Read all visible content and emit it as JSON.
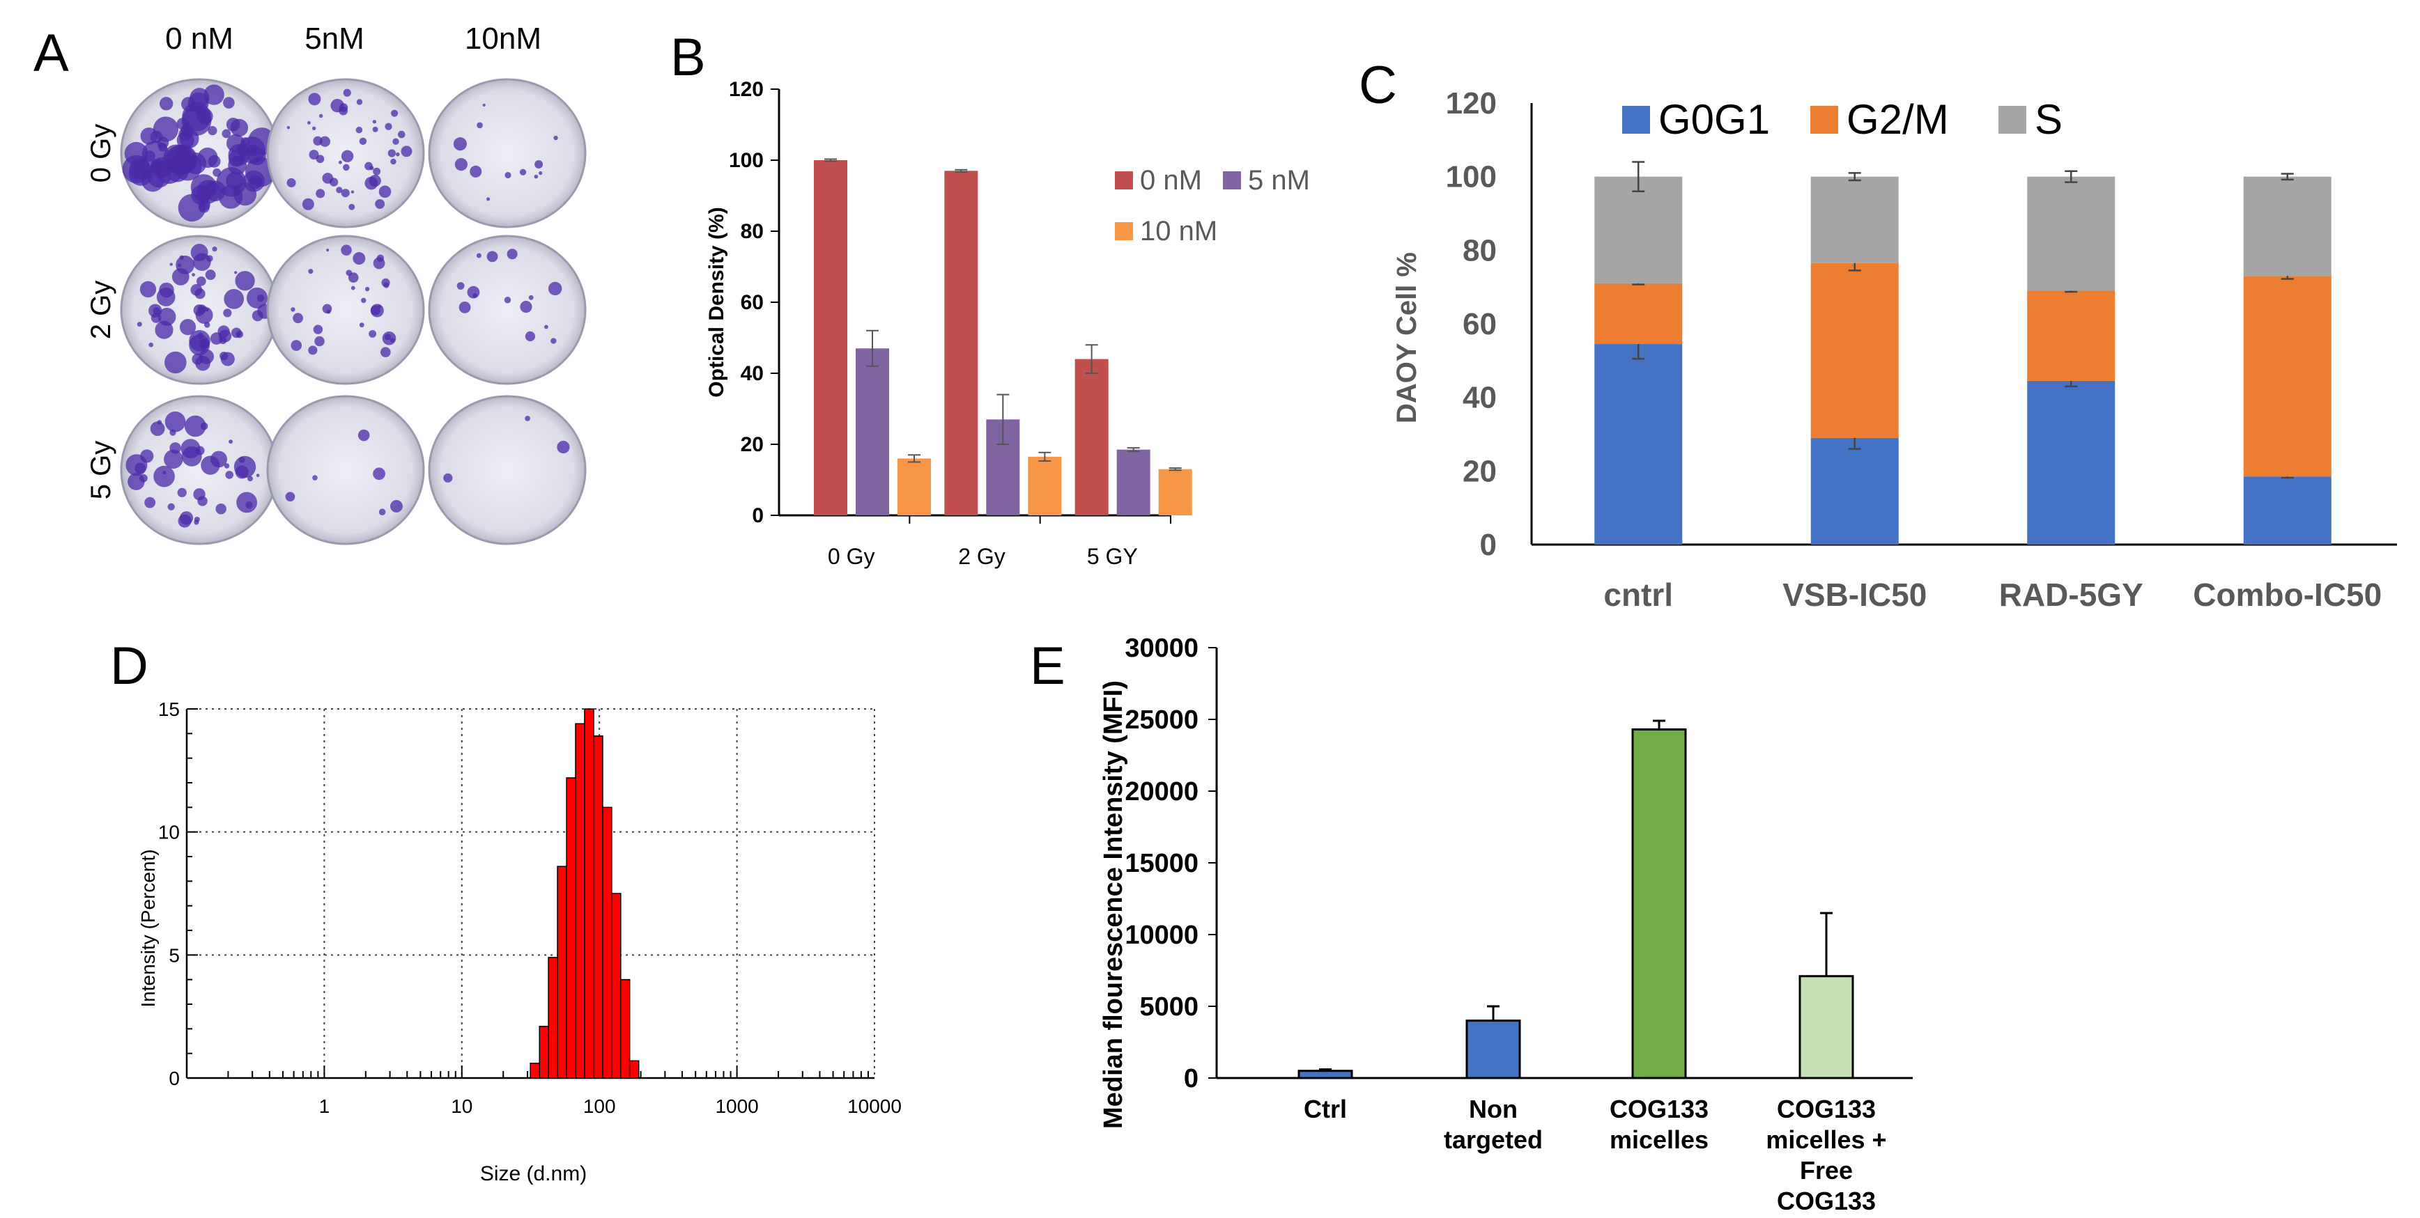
{
  "panels": {
    "A": {
      "letter": "A",
      "column_labels": [
        "0 nM",
        "5nM",
        "10nM"
      ],
      "row_labels": [
        "0 Gy",
        "2 Gy",
        "5 Gy"
      ]
    },
    "B": {
      "letter": "B"
    },
    "C": {
      "letter": "C"
    },
    "D": {
      "letter": "D"
    },
    "E": {
      "letter": "E"
    }
  },
  "colors": {
    "B_0nM": "#c0504d",
    "B_5nM": "#8064a2",
    "B_10nM": "#f79646",
    "C_G0G1": "#4472c4",
    "C_G2M": "#ed7d31",
    "C_S": "#a5a5a5",
    "D_bars": "#ff0000",
    "E_blue": "#4472c4",
    "E_green": "#70ad47",
    "E_lightgreen": "#c5e0b4",
    "plate_stain": "#4a2aa8"
  },
  "chart_data": [
    {
      "panel": "B",
      "type": "bar",
      "title": "",
      "xlabel": "",
      "ylabel": "Optical Density (%)",
      "categories": [
        "0 Gy",
        "2 Gy",
        "5 GY"
      ],
      "ylim": [
        0,
        120
      ],
      "yticks": [
        0,
        20,
        40,
        60,
        80,
        100,
        120
      ],
      "legend_position": "top-right",
      "series": [
        {
          "name": "0 nM",
          "values": [
            100,
            97,
            44
          ],
          "errors": [
            0.3,
            0.3,
            4
          ]
        },
        {
          "name": "5 nM",
          "values": [
            47,
            27,
            18.5
          ],
          "errors": [
            5,
            7,
            0.5
          ]
        },
        {
          "name": "10 nM",
          "values": [
            16,
            16.5,
            13
          ],
          "errors": [
            1,
            1.2,
            0.3
          ]
        }
      ]
    },
    {
      "panel": "C",
      "type": "bar",
      "stacked": true,
      "title": "",
      "xlabel": "",
      "ylabel": "DAOY Cell %",
      "categories": [
        "cntrl",
        "VSB-IC50",
        "RAD-5GY",
        "Combo-IC50"
      ],
      "ylim": [
        0,
        120
      ],
      "yticks": [
        0,
        20,
        40,
        60,
        80,
        100,
        120
      ],
      "legend_position": "top",
      "series": [
        {
          "name": "G0G1",
          "values": [
            54.5,
            29,
            44.5,
            18.5
          ],
          "errors": [
            4,
            3,
            1.5,
            0.3
          ]
        },
        {
          "name": "G2/M",
          "values": [
            16.5,
            47.5,
            24.5,
            54.5
          ],
          "errors": [
            0.3,
            2,
            0.3,
            0.8
          ]
        },
        {
          "name": "S",
          "values": [
            29,
            23.5,
            31,
            27
          ],
          "errors": [
            4,
            1,
            1.5,
            0.8
          ]
        }
      ]
    },
    {
      "panel": "D",
      "type": "bar",
      "title": "",
      "xlabel": "Size (d.nm)",
      "ylabel": "Intensity (Percent)",
      "x_scale": "log",
      "xlim": [
        0.1,
        10000
      ],
      "xticks": [
        "1",
        "10",
        "100",
        "1000",
        "10000"
      ],
      "ylim": [
        0,
        15
      ],
      "yticks": [
        "0",
        "5",
        "10",
        "15"
      ],
      "x": [
        34.0,
        39.6,
        46.0,
        53.5,
        62.3,
        72.4,
        84.2,
        97.9,
        113.8,
        132.4,
        153.9,
        179.1
      ],
      "values": [
        0.6,
        2.1,
        4.9,
        8.6,
        12.2,
        14.4,
        15.0,
        13.9,
        11.0,
        7.5,
        4.0,
        0.7
      ]
    },
    {
      "panel": "E",
      "type": "bar",
      "title": "",
      "xlabel": "",
      "ylabel": "Median flourescence Intensity (MFI)",
      "categories": [
        "Ctrl",
        "Non targeted",
        "COG133 micelles",
        "COG133 micelles + Free COG133"
      ],
      "ylim": [
        0,
        30000
      ],
      "yticks": [
        0,
        5000,
        10000,
        15000,
        20000,
        25000,
        30000
      ],
      "values": [
        500,
        4000,
        24300,
        7100
      ],
      "errors": [
        100,
        1000,
        600,
        4400
      ]
    }
  ]
}
